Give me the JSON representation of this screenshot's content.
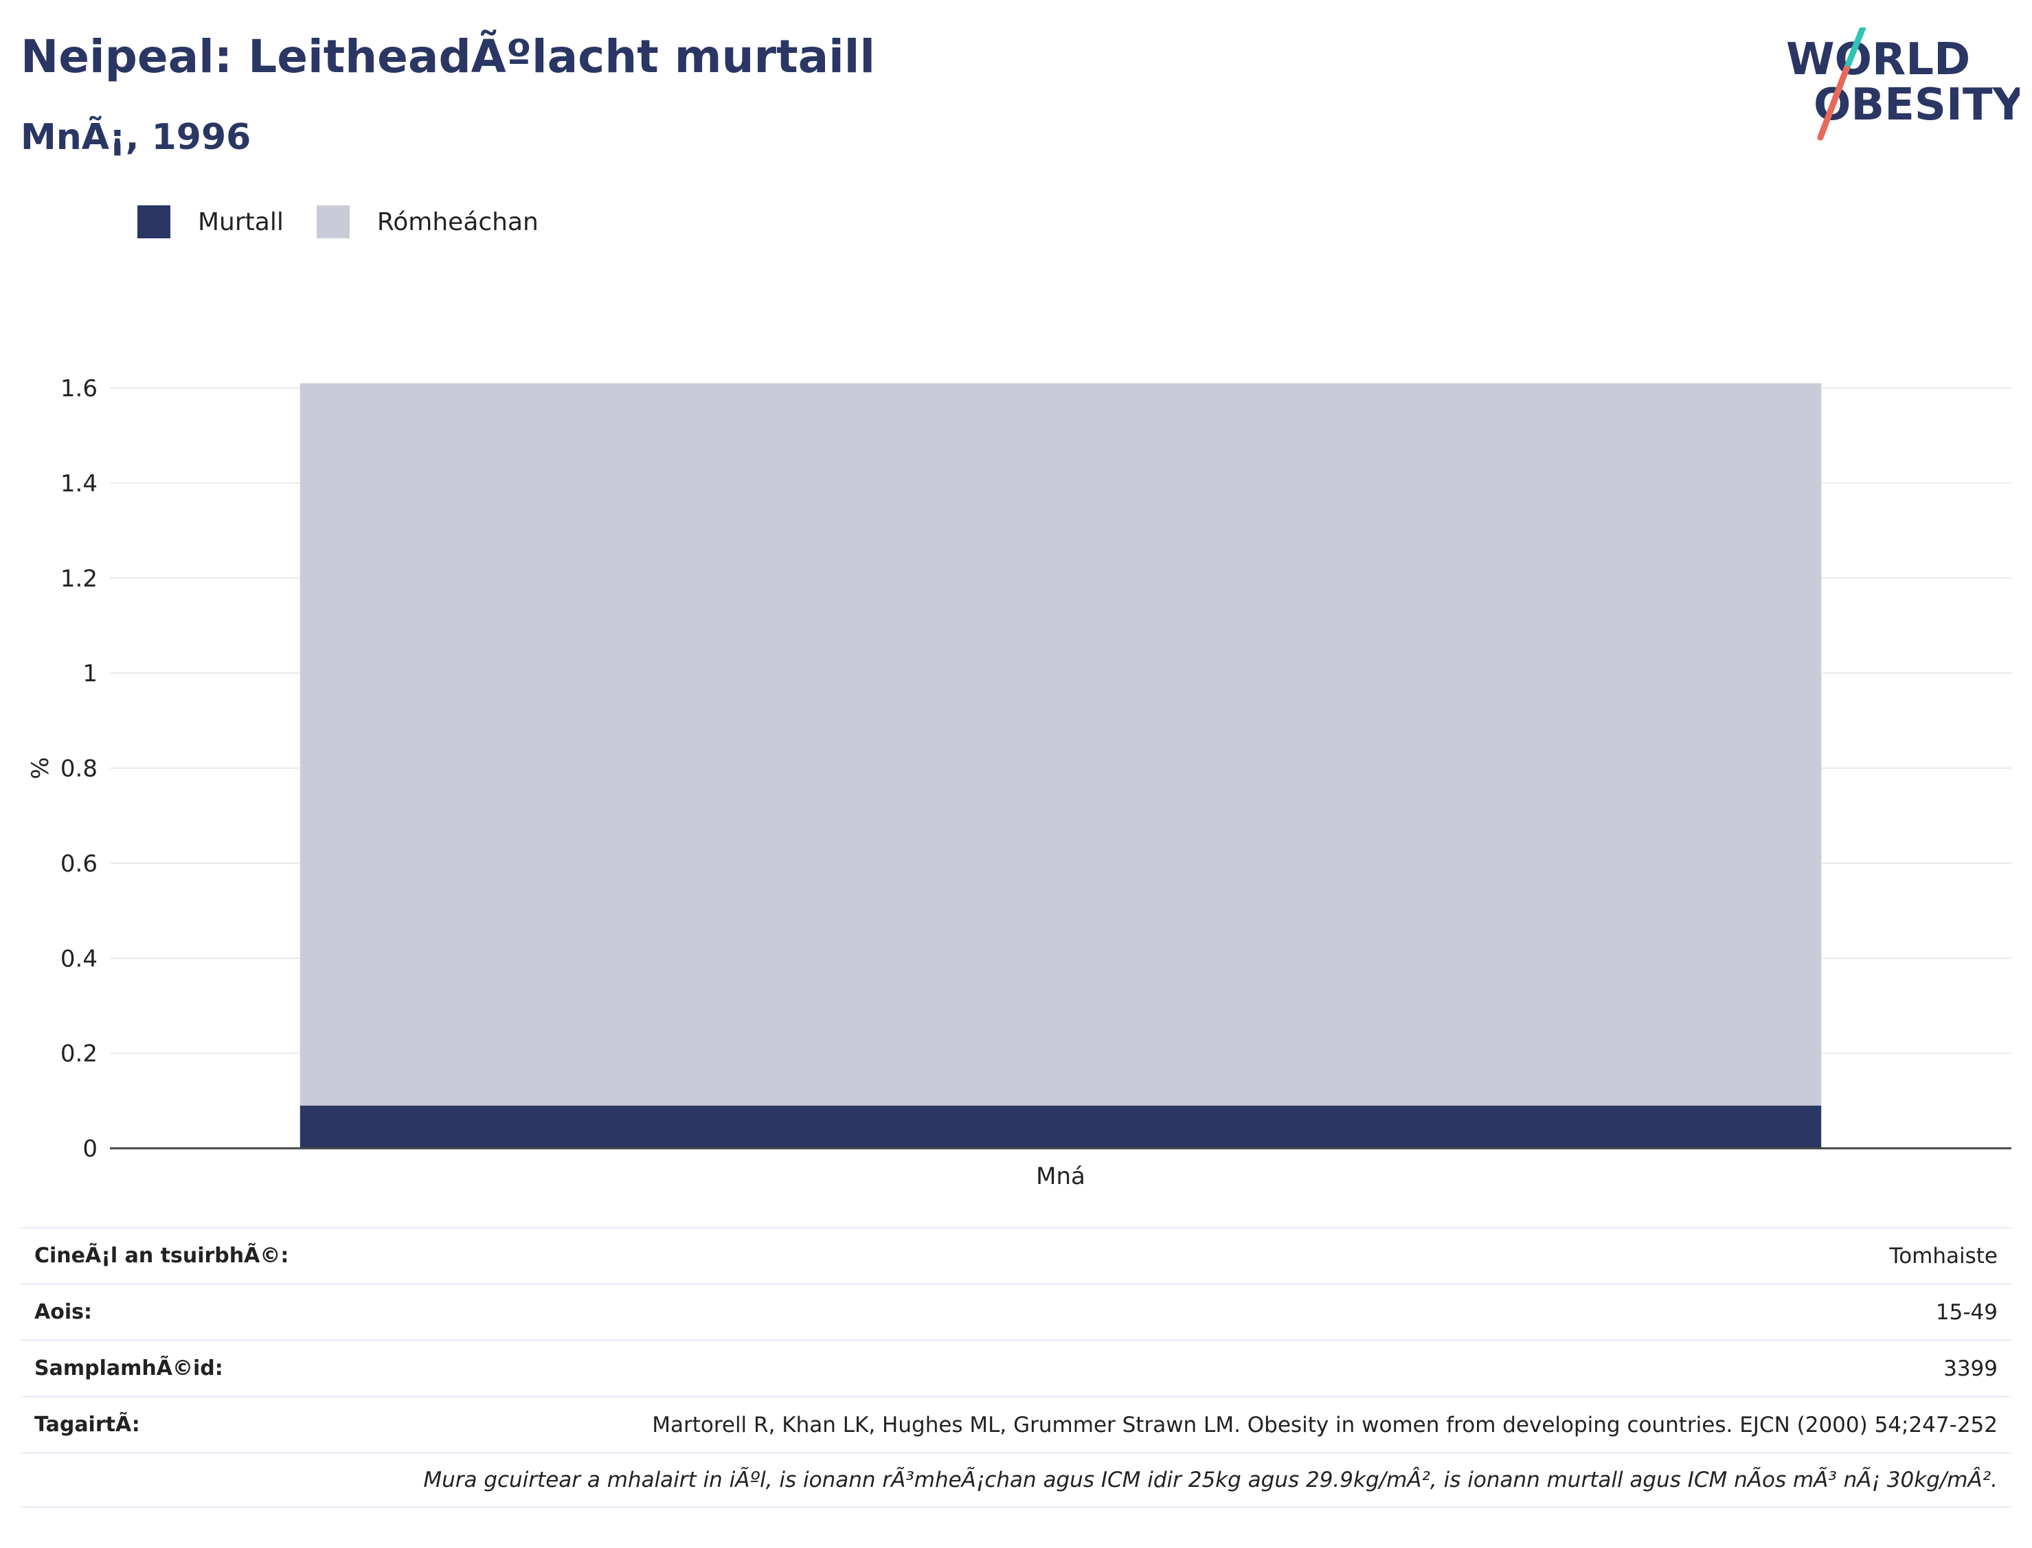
{
  "header": {
    "title": "Neipeal: LeitheadÃºlacht murtaill",
    "subtitle": "MnÃ¡, 1996"
  },
  "logo": {
    "line1": "WORLD",
    "line2": "OBESITY",
    "text_color": "#2a3663",
    "slash_colors": [
      "#2ec4b6",
      "#e8685a"
    ]
  },
  "legend": {
    "items": [
      {
        "label": "Murtall",
        "color": "#2a3663"
      },
      {
        "label": "Rómheáchan",
        "color": "#c9ccd8"
      }
    ]
  },
  "chart_data": {
    "type": "bar",
    "stacked": true,
    "categories": [
      "Mná"
    ],
    "series": [
      {
        "name": "Murtall",
        "values": [
          0.09
        ],
        "color": "#2a3663"
      },
      {
        "name": "Rómheáchan",
        "values": [
          1.52
        ],
        "color": "#c9ccd8"
      }
    ],
    "ylabel": "%",
    "ylim": [
      0,
      1.6
    ],
    "yticks": [
      "0",
      "0.2",
      "0.4",
      "0.6",
      "0.8",
      "1",
      "1.2",
      "1.4",
      "1.6"
    ],
    "grid": true
  },
  "info_table": {
    "rows": [
      {
        "label": "CineÃ¡l an tsuirbhÃ©:",
        "value": "Tomhaiste"
      },
      {
        "label": "Aois:",
        "value": "15-49"
      },
      {
        "label": "SamplamhÃ©id:",
        "value": "3399"
      },
      {
        "label": "TagairtÃ:",
        "value": "Martorell R, Khan LK, Hughes ML, Grummer Strawn LM. Obesity in women from developing countries. EJCN (2000) 54;247-252"
      }
    ],
    "note": "Mura gcuirtear a mhalairt in iÃºl, is ionann rÃ³mheÃ¡chan agus ICM idir 25kg agus 29.9kg/mÂ², is ionann murtall agus ICM nÃos mÃ³ nÃ¡ 30kg/mÂ²."
  }
}
